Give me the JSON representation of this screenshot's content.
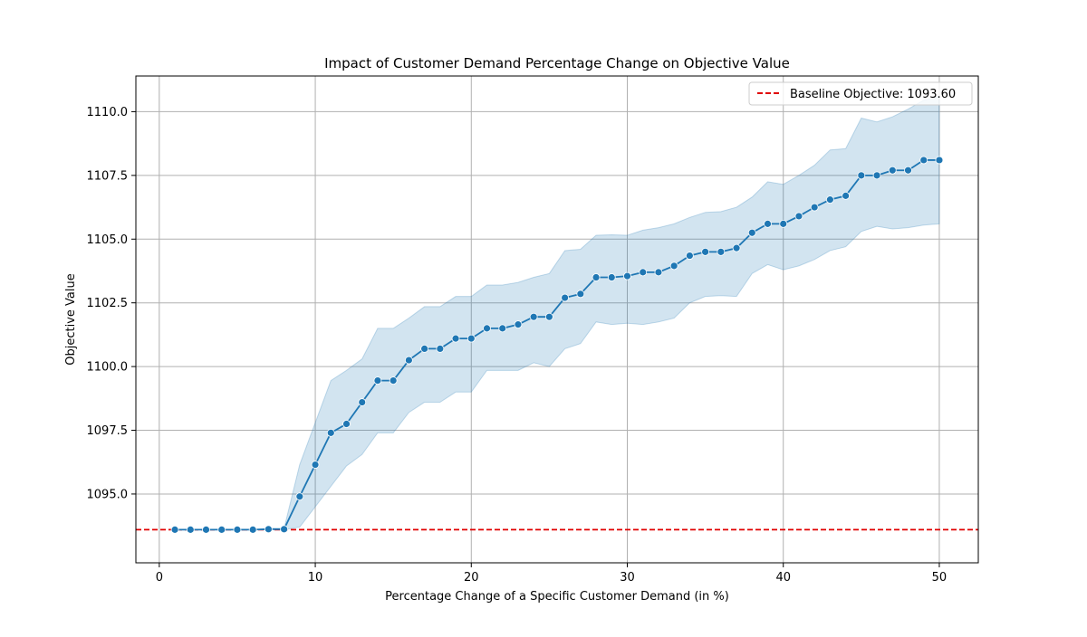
{
  "chart_data": {
    "type": "line",
    "title": "Impact of Customer Demand Percentage Change on Objective Value",
    "xlabel": "Percentage Change of a Specific Customer Demand (in %)",
    "ylabel": "Objective Value",
    "xlim": [
      -1.5,
      52.5
    ],
    "ylim": [
      1092.3,
      1111.4
    ],
    "xticks": [
      0,
      10,
      20,
      30,
      40,
      50
    ],
    "xtick_labels": [
      "0",
      "10",
      "20",
      "30",
      "40",
      "50"
    ],
    "yticks": [
      1095.0,
      1097.5,
      1100.0,
      1102.5,
      1105.0,
      1107.5,
      1110.0
    ],
    "ytick_labels": [
      "1095.0",
      "1097.5",
      "1100.0",
      "1102.5",
      "1105.0",
      "1107.5",
      "1110.0"
    ],
    "grid": true,
    "legend_position": "top-right",
    "series": [
      {
        "x": [
          1,
          2,
          3,
          4,
          5,
          6,
          7,
          8,
          9,
          10,
          11,
          12,
          13,
          14,
          15,
          16,
          17,
          18,
          19,
          20,
          21,
          22,
          23,
          24,
          25,
          26,
          27,
          28,
          29,
          30,
          31,
          32,
          33,
          34,
          35,
          36,
          37,
          38,
          39,
          40,
          41,
          42,
          43,
          44,
          45,
          46,
          47,
          48,
          49,
          50
        ],
        "values": [
          1093.6,
          1093.6,
          1093.6,
          1093.6,
          1093.6,
          1093.6,
          1093.62,
          1093.62,
          1094.9,
          1096.15,
          1097.4,
          1097.75,
          1098.6,
          1099.45,
          1099.45,
          1100.25,
          1100.7,
          1100.7,
          1101.1,
          1101.1,
          1101.5,
          1101.5,
          1101.65,
          1101.95,
          1101.95,
          1102.7,
          1102.85,
          1103.5,
          1103.5,
          1103.55,
          1103.7,
          1103.7,
          1103.95,
          1104.35,
          1104.5,
          1104.5,
          1104.65,
          1105.25,
          1105.6,
          1105.6,
          1105.9,
          1106.25,
          1106.55,
          1106.7,
          1107.5,
          1107.5,
          1107.7,
          1107.7,
          1108.1,
          1108.1
        ],
        "lower": [
          1093.6,
          1093.6,
          1093.6,
          1093.6,
          1093.6,
          1093.6,
          1093.6,
          1093.6,
          1093.7,
          1094.5,
          1095.3,
          1096.1,
          1096.55,
          1097.4,
          1097.4,
          1098.2,
          1098.6,
          1098.6,
          1099.0,
          1099.0,
          1099.85,
          1099.85,
          1099.85,
          1100.15,
          1100.0,
          1100.7,
          1100.9,
          1101.75,
          1101.65,
          1101.7,
          1101.65,
          1101.75,
          1101.9,
          1102.5,
          1102.75,
          1102.78,
          1102.75,
          1103.65,
          1104.0,
          1103.8,
          1103.95,
          1104.2,
          1104.55,
          1104.7,
          1105.3,
          1105.5,
          1105.4,
          1105.45,
          1105.55,
          1105.6
        ],
        "upper": [
          1093.6,
          1093.6,
          1093.6,
          1093.6,
          1093.6,
          1093.6,
          1093.65,
          1093.65,
          1096.15,
          1097.8,
          1099.45,
          1099.85,
          1100.3,
          1101.5,
          1101.5,
          1101.9,
          1102.35,
          1102.35,
          1102.75,
          1102.75,
          1103.2,
          1103.2,
          1103.3,
          1103.5,
          1103.65,
          1104.55,
          1104.6,
          1105.15,
          1105.17,
          1105.15,
          1105.35,
          1105.45,
          1105.6,
          1105.85,
          1106.05,
          1106.08,
          1106.25,
          1106.65,
          1107.25,
          1107.15,
          1107.5,
          1107.9,
          1108.5,
          1108.55,
          1109.75,
          1109.6,
          1109.8,
          1110.1,
          1110.45,
          1110.6
        ]
      }
    ],
    "baseline": {
      "label": "Baseline Objective: 1093.60",
      "value": 1093.6
    },
    "colors": {
      "line": "#1f77b4",
      "band": "#1f77b4",
      "baseline": "#e00000",
      "grid": "#b0b0b0"
    }
  }
}
